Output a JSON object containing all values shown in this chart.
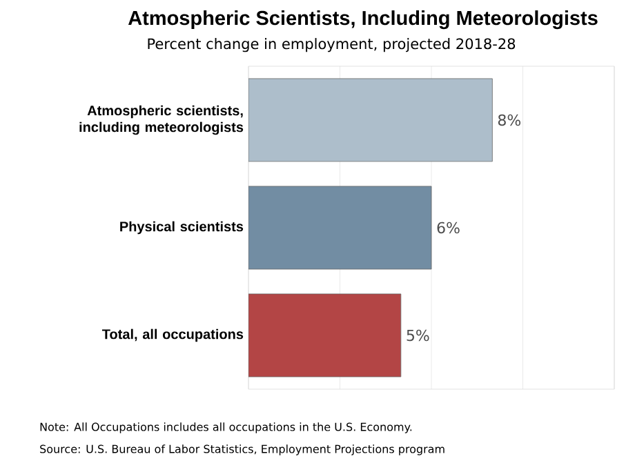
{
  "chart_data": {
    "type": "bar",
    "orientation": "horizontal",
    "title": "Atmospheric Scientists, Including Meteorologists",
    "subtitle": "Percent change in employment, projected 2018-28",
    "categories": [
      "Atmospheric scientists, including meteorologists",
      "Physical scientists",
      "Total, all occupations"
    ],
    "values": [
      8,
      6,
      5
    ],
    "colors": [
      "#adbecb",
      "#728da3",
      "#b34545"
    ],
    "value_labels": [
      "8%",
      "6%",
      "5%"
    ],
    "xlim": [
      0,
      12
    ],
    "xticks": [
      {
        "value": 0,
        "label": null
      },
      {
        "value": 3,
        "label": null
      },
      {
        "value": 6,
        "label": null
      },
      {
        "value": 9,
        "label": null
      },
      {
        "value": 12,
        "label": null
      }
    ],
    "tick_labels": "y",
    "grid": "x",
    "annotations": [
      "Note: All Occupations includes all occupations in the U.S. Economy.",
      "Source: U.S. Bureau of Labor Statistics, Employment Projections program"
    ]
  }
}
